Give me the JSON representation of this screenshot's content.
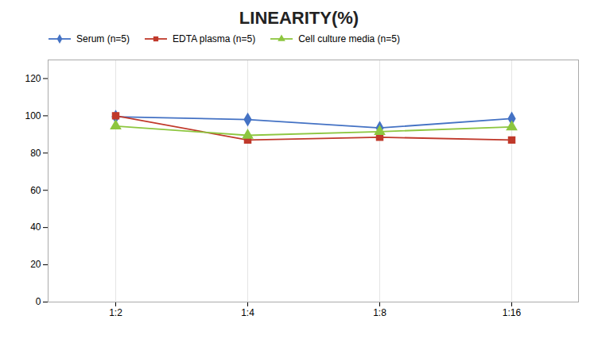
{
  "chart_data": {
    "type": "line",
    "title": "LINEARITY(%)",
    "categories": [
      "1:2",
      "1:4",
      "1:8",
      "1:16"
    ],
    "series": [
      {
        "name": "Serum (n=5)",
        "color": "#4472C4",
        "marker": "diamond",
        "values": [
          99.5,
          98.0,
          93.5,
          98.5
        ]
      },
      {
        "name": "EDTA plasma (n=5)",
        "color": "#C0392B",
        "marker": "square",
        "values": [
          100.0,
          87.0,
          88.5,
          87.0
        ]
      },
      {
        "name": "Cell culture media (n=5)",
        "color": "#8DC63F",
        "marker": "triangle",
        "values": [
          94.5,
          89.5,
          91.5,
          94.0
        ]
      }
    ],
    "ylim": [
      0,
      130
    ],
    "yticks": [
      0,
      20,
      40,
      60,
      80,
      100,
      120
    ],
    "grid": "x",
    "legend": "top"
  }
}
